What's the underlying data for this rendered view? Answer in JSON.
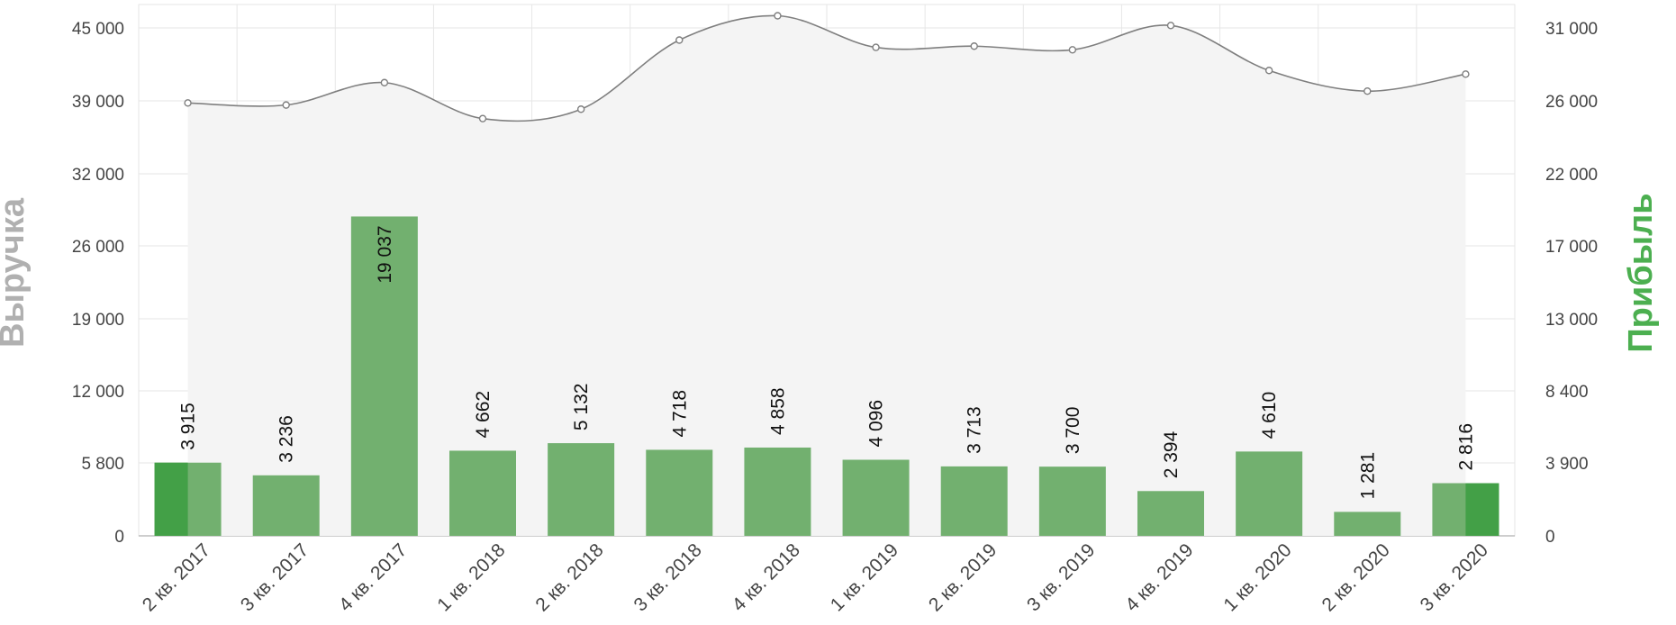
{
  "chart_data": {
    "type": "bar",
    "categories": [
      "2 кв. 2017",
      "3 кв. 2017",
      "4 кв. 2017",
      "1 кв. 2018",
      "2 кв. 2018",
      "3 кв. 2018",
      "4 кв. 2018",
      "1 кв. 2019",
      "2 кв. 2019",
      "3 кв. 2019",
      "4 кв. 2019",
      "1 кв. 2020",
      "2 кв. 2020",
      "3 кв. 2020"
    ],
    "series": [
      {
        "name": "Прибыль",
        "type": "bar",
        "axis": "right",
        "values": [
          3915,
          3236,
          19037,
          4662,
          5132,
          4718,
          4858,
          4096,
          3713,
          3700,
          2394,
          4610,
          1281,
          2816
        ],
        "labels": [
          "3 915",
          "3 236",
          "19 037",
          "4 662",
          "5 132",
          "4 718",
          "4 858",
          "4 096",
          "3 713",
          "3 700",
          "2 394",
          "4 610",
          "1 281",
          "2 816"
        ]
      },
      {
        "name": "Выручка",
        "type": "area",
        "axis": "left",
        "values": [
          38800,
          38600,
          40500,
          37300,
          38200,
          44000,
          46000,
          43400,
          43500,
          43200,
          45200,
          41500,
          39800,
          41200
        ]
      }
    ],
    "left_axis": {
      "label": "Выручка",
      "ticks": [
        0,
        5800,
        12000,
        19000,
        26000,
        32000,
        39000,
        45000
      ],
      "tick_labels": [
        "0",
        "5 800",
        "12 000",
        "19 000",
        "26 000",
        "32 000",
        "39 000",
        "45 000"
      ]
    },
    "right_axis": {
      "label": "Прибыль",
      "ticks": [
        0,
        3900,
        8400,
        13000,
        17000,
        22000,
        26000,
        31000
      ],
      "tick_labels": [
        "0",
        "3 900",
        "8 400",
        "13 000",
        "17 000",
        "22 000",
        "26 000",
        "31 000"
      ]
    },
    "grid": true,
    "colors": {
      "bar": "#72b06f",
      "bar_highlight": "#43a047",
      "line": "#7f7f7f",
      "area": "#f4f4f4",
      "grid": "#e6e6e6",
      "left_title": "#b0b0b0",
      "right_title": "#4caf50"
    }
  }
}
